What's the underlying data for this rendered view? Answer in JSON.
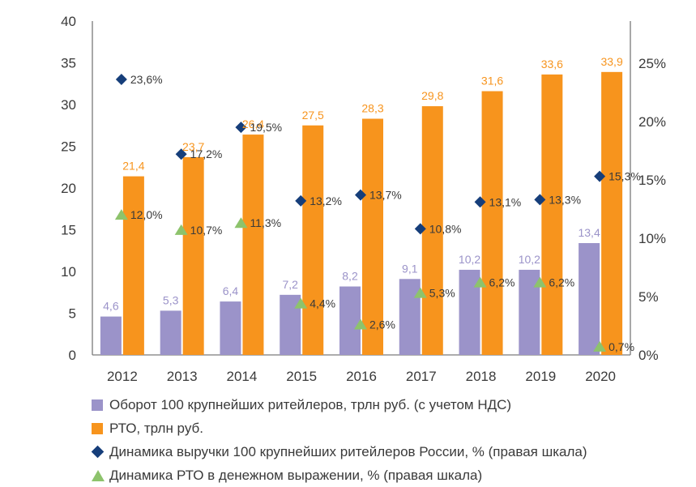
{
  "chart_data": {
    "type": "bar",
    "categories": [
      "2012",
      "2013",
      "2014",
      "2015",
      "2016",
      "2017",
      "2018",
      "2019",
      "2020"
    ],
    "series": [
      {
        "name": "Оборот 100 крупнейших ритейлеров, трлн руб. (с учетом НДС)",
        "kind": "bar",
        "axis": "left",
        "color": "#9b93c9",
        "values": [
          4.6,
          5.3,
          6.4,
          7.2,
          8.2,
          9.1,
          10.2,
          10.2,
          13.4
        ],
        "labels": [
          "4,6",
          "5,3",
          "6,4",
          "7,2",
          "8,2",
          "9,1",
          "10,2",
          "10,2",
          "13,4"
        ]
      },
      {
        "name": "РТО, трлн руб.",
        "kind": "bar",
        "axis": "left",
        "color": "#f7941d",
        "values": [
          21.4,
          23.7,
          26.4,
          27.5,
          28.3,
          29.8,
          31.6,
          33.6,
          33.9
        ],
        "labels": [
          "21,4",
          "23,7",
          "26,4",
          "27,5",
          "28,3",
          "29,8",
          "31,6",
          "33,6",
          "33,9"
        ]
      },
      {
        "name": "Динамика выручки 100 крупнейших ритейлеров России, % (правая шкала)",
        "kind": "marker-diamond",
        "axis": "right",
        "color": "#163e7a",
        "values": [
          23.6,
          17.2,
          19.5,
          13.2,
          13.7,
          10.8,
          13.1,
          13.3,
          15.3
        ],
        "labels": [
          "23,6%",
          "17,2%",
          "19,5%",
          "13,2%",
          "13,7%",
          "10,8%",
          "13,1%",
          "13,3%",
          "15,3%"
        ]
      },
      {
        "name": "Динамика РТО в денежном выражении, % (правая шкала)",
        "kind": "marker-triangle",
        "axis": "right",
        "color": "#8dc36c",
        "values": [
          12.0,
          10.7,
          11.3,
          4.4,
          2.6,
          5.3,
          6.2,
          6.2,
          0.7
        ],
        "labels": [
          "12,0%",
          "10,7%",
          "11,3%",
          "4,4%",
          "2,6%",
          "5,3%",
          "6,2%",
          "6,2%",
          "0,7%"
        ]
      }
    ],
    "y_left": {
      "ylim": [
        0,
        40
      ],
      "ticks": [
        "0",
        "5",
        "10",
        "15",
        "20",
        "25",
        "30",
        "35",
        "40"
      ]
    },
    "y_right": {
      "ylim": [
        0,
        28.6
      ],
      "ticks": [
        "0%",
        "5%",
        "10%",
        "15%",
        "20%",
        "25%"
      ]
    },
    "grid": false,
    "legend_position": "bottom",
    "colors": {
      "text": "#3a3a3a",
      "orange_label": "#f7941d",
      "purple_label": "#9b93c9",
      "axis": "#7a7a7a"
    }
  },
  "legend": {
    "items": [
      "Оборот 100 крупнейших ритейлеров, трлн руб. (с учетом НДС)",
      "РТО, трлн руб.",
      "Динамика выручки 100 крупнейших ритейлеров России, % (правая шкала)",
      "Динамика РТО в денежном выражении, % (правая шкала)"
    ]
  }
}
